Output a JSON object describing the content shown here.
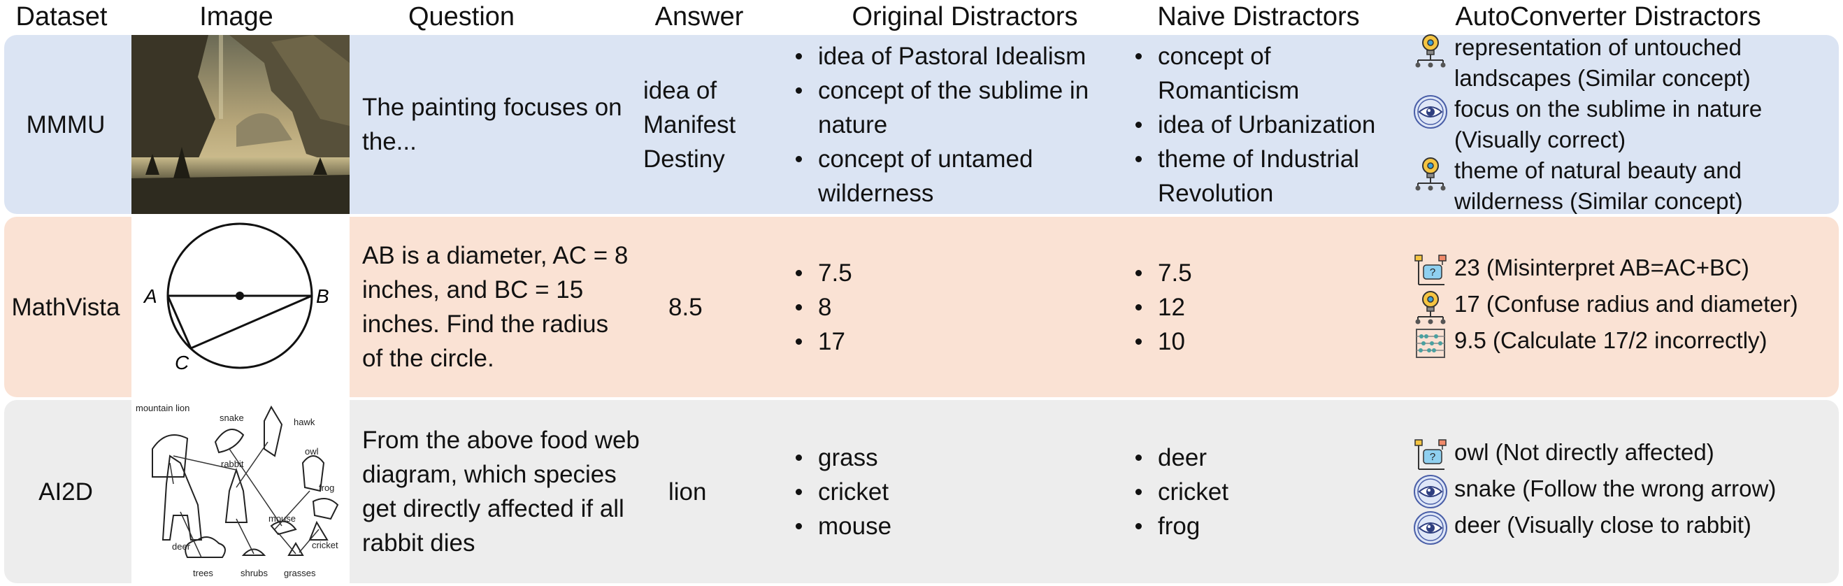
{
  "headers": {
    "dataset": "Dataset",
    "image": "Image",
    "question": "Question",
    "answer": "Answer",
    "original": "Original Distractors",
    "naive": "Naive Distractors",
    "auto": "AutoConverter Distractors"
  },
  "colors": {
    "mmmu_bg": "#dbe4f3",
    "mathvista_bg": "#fae2d4",
    "ai2d_bg": "#ededed"
  },
  "rows": [
    {
      "dataset": "MMMU",
      "image_desc": "landscape-painting",
      "question": "The painting focuses on the...",
      "answer": "idea of Manifest Destiny",
      "original": [
        "idea of Pastoral Idealism",
        "concept of the sublime in nature",
        "concept of untamed wilderness"
      ],
      "naive": [
        "concept of Romanticism",
        "idea of Urbanization",
        "theme of Industrial Revolution"
      ],
      "auto": [
        {
          "icon": "lightbulb-network-icon",
          "text": "representation of untouched landscapes (Similar concept)"
        },
        {
          "icon": "eye-icon",
          "text": "focus on the sublime in nature (Visually correct)"
        },
        {
          "icon": "lightbulb-network-icon",
          "text": "theme of natural beauty and wilderness (Similar concept)"
        }
      ]
    },
    {
      "dataset": "MathVista",
      "image_desc": "circle-geometry",
      "question": "AB is a diameter, AC = 8 inches, and BC = 15 inches. Find the radius of the circle.",
      "answer": "8.5",
      "image_labels": {
        "a": "A",
        "b": "B",
        "c": "C"
      },
      "original": [
        "7.5",
        "8",
        "17"
      ],
      "naive": [
        "7.5",
        "12",
        "10"
      ],
      "auto": [
        {
          "icon": "flowchart-question-icon",
          "text": "23 (Misinterpret AB=AC+BC)"
        },
        {
          "icon": "lightbulb-network-icon",
          "text": "17 (Confuse radius and diameter)"
        },
        {
          "icon": "abacus-icon",
          "text": "9.5 (Calculate 17/2 incorrectly)"
        }
      ]
    },
    {
      "dataset": "AI2D",
      "image_desc": "food-web-diagram",
      "question": "From the above food web diagram, which species get directly affected if all rabbit dies",
      "answer": "lion",
      "image_labels": {
        "mountain_lion": "mountain lion",
        "snake": "snake",
        "hawk": "hawk",
        "owl": "owl",
        "frog": "frog",
        "rabbit": "rabbit",
        "deer": "deer",
        "mouse": "mouse",
        "cricket": "cricket",
        "trees": "trees",
        "shrubs": "shrubs",
        "grasses": "grasses"
      },
      "original": [
        "grass",
        "cricket",
        "mouse"
      ],
      "naive": [
        "deer",
        "cricket",
        "frog"
      ],
      "auto": [
        {
          "icon": "flowchart-question-icon",
          "text": "owl (Not directly affected)"
        },
        {
          "icon": "eye-icon",
          "text": "snake (Follow the wrong arrow)"
        },
        {
          "icon": "eye-icon",
          "text": "deer (Visually close to rabbit)"
        }
      ]
    }
  ]
}
